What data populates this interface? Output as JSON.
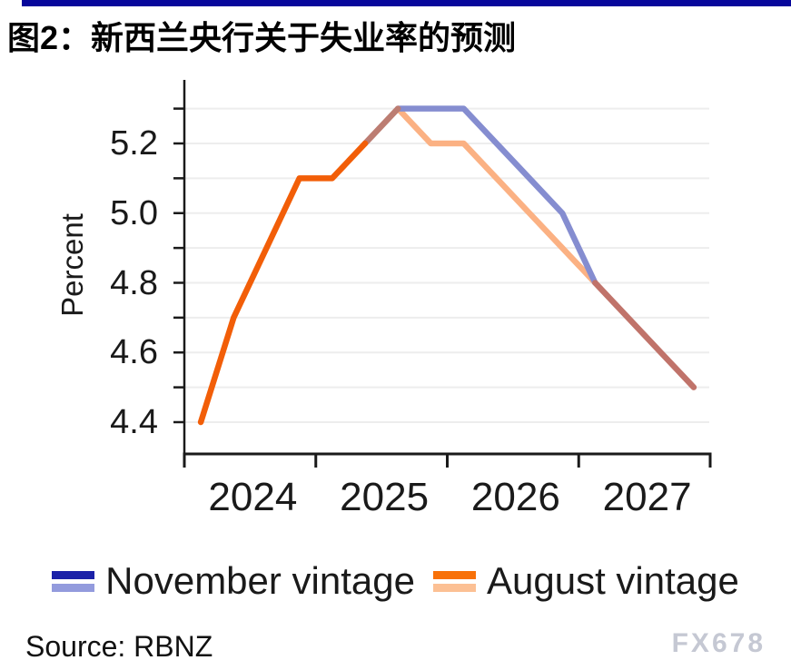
{
  "header": {
    "title": "图2：新西兰央行关于失业率的预测",
    "accent_bar_color": "#07079B"
  },
  "chart_data": {
    "type": "line",
    "title": "图2：新西兰央行关于失业率的预测",
    "ylabel": "Percent",
    "xlabel": "",
    "ylim": [
      4.3,
      5.375
    ],
    "grid": "horizontal",
    "legend_position": "bottom",
    "x_categories": [
      "2024Q1",
      "2024Q2",
      "2024Q3",
      "2024Q4",
      "2025Q1",
      "2025Q2",
      "2025Q3",
      "2025Q4",
      "2026Q1",
      "2026Q2",
      "2026Q3",
      "2026Q4",
      "2027Q1",
      "2027Q2",
      "2027Q3",
      "2027Q4"
    ],
    "x_tick_labels": [
      "2024",
      "2025",
      "2026",
      "2027"
    ],
    "y_tick_labels": [
      "5.2",
      "5.0",
      "4.8",
      "4.6",
      "4.4"
    ],
    "y_gridlines": [
      4.4,
      4.5,
      4.6,
      4.7,
      4.8,
      4.9,
      5.0,
      5.1,
      5.2,
      5.3
    ],
    "series": [
      {
        "name": "November vintage",
        "values": [
          4.4,
          4.7,
          4.9,
          5.1,
          5.1,
          5.2,
          5.3,
          5.3,
          5.3,
          5.2,
          5.1,
          5.0,
          4.8,
          4.7,
          4.6,
          4.5
        ],
        "color_actual": "#1B21A8",
        "color_forecast": "#858DD0"
      },
      {
        "name": "August vintage",
        "values": [
          4.4,
          4.7,
          4.9,
          5.1,
          5.1,
          5.2,
          5.3,
          5.2,
          5.2,
          5.1,
          5.0,
          4.9,
          4.8,
          4.7,
          4.6,
          4.5
        ],
        "color_actual": "#F25E08",
        "color_forecast": "#FBB183"
      }
    ],
    "render_segments": [
      {
        "name": "august-forecast",
        "color": "#FBB183",
        "points": [
          [
            6,
            5.3
          ],
          [
            7,
            5.2
          ],
          [
            8,
            5.2
          ],
          [
            9,
            5.1
          ],
          [
            10,
            5.0
          ],
          [
            11,
            4.9
          ],
          [
            12,
            4.8
          ]
        ]
      },
      {
        "name": "november-forecast",
        "color": "#858DD0",
        "points": [
          [
            6,
            5.3
          ],
          [
            7,
            5.3
          ],
          [
            8,
            5.3
          ],
          [
            9,
            5.2
          ],
          [
            10,
            5.1
          ],
          [
            11,
            5.0
          ],
          [
            12,
            4.8
          ]
        ]
      },
      {
        "name": "overlap-rise",
        "color": "#BC7D72",
        "points": [
          [
            5,
            5.2
          ],
          [
            6,
            5.3
          ]
        ]
      },
      {
        "name": "overlap-merged-decline",
        "color": "#C0736A",
        "points": [
          [
            12,
            4.8
          ],
          [
            13,
            4.7
          ],
          [
            14,
            4.6
          ],
          [
            15,
            4.5
          ]
        ]
      },
      {
        "name": "actual-history",
        "color": "#F25E08",
        "points": [
          [
            0,
            4.4
          ],
          [
            1,
            4.7
          ],
          [
            2,
            4.9
          ],
          [
            3,
            5.1
          ],
          [
            4,
            5.1
          ],
          [
            5,
            5.2
          ]
        ]
      }
    ],
    "legend": {
      "items": [
        {
          "label": "November vintage",
          "swatch_top": "#1B21A8",
          "swatch_bottom": "#939BDD"
        },
        {
          "label": "August vintage",
          "swatch_top": "#F87109",
          "swatch_bottom": "#FCC094"
        }
      ]
    },
    "colors": {
      "gridline": "#EDEDED",
      "axis": "#1a1a1a"
    }
  },
  "footer": {
    "source": "Source: RBNZ",
    "watermark": "FX678"
  }
}
